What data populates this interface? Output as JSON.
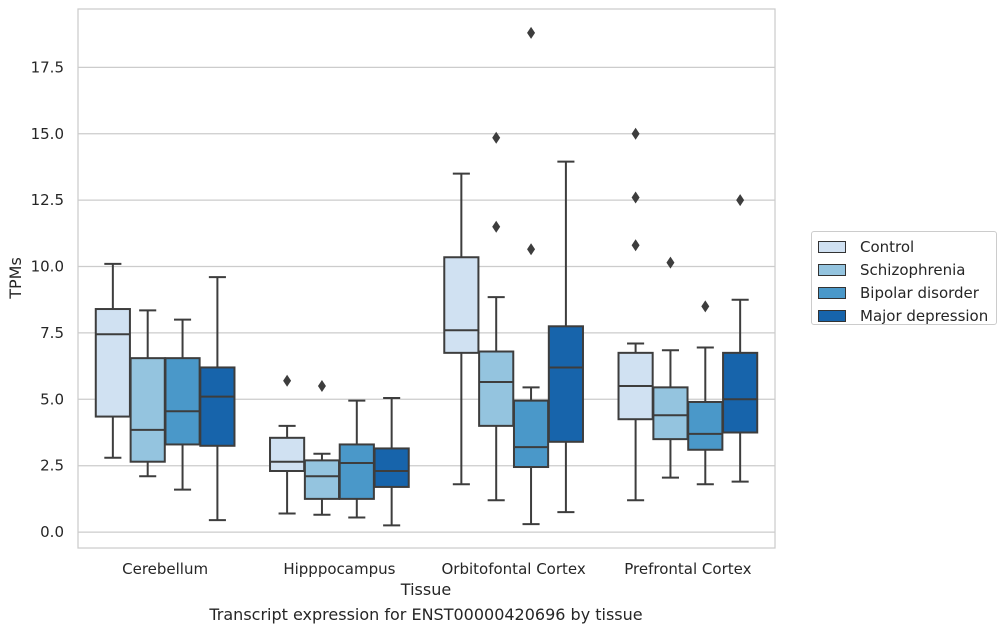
{
  "chart_data": {
    "type": "boxplot",
    "xlabel": "Tissue",
    "ylabel": "TPMs",
    "caption": "Transcript expression for ENST00000420696 by tissue",
    "ylim": [
      -0.6,
      19.7
    ],
    "yticks": [
      "0.0",
      "2.5",
      "5.0",
      "7.5",
      "10.0",
      "12.5",
      "15.0",
      "17.5"
    ],
    "categories": [
      "Cerebellum",
      "Hipppocampus",
      "Orbitofontal Cortex",
      "Prefrontal Cortex"
    ],
    "grid": "horizontal",
    "legend_position": "right",
    "series": [
      {
        "name": "Control",
        "color": "#d0e1f2",
        "boxes": [
          {
            "whislo": 2.8,
            "q1": 4.35,
            "med": 7.45,
            "q3": 8.4,
            "whishi": 10.1,
            "fliers": []
          },
          {
            "whislo": 0.7,
            "q1": 2.3,
            "med": 2.65,
            "q3": 3.55,
            "whishi": 4.0,
            "fliers": [
              5.7
            ]
          },
          {
            "whislo": 1.8,
            "q1": 6.75,
            "med": 7.6,
            "q3": 10.35,
            "whishi": 13.5,
            "fliers": []
          },
          {
            "whislo": 1.2,
            "q1": 4.25,
            "med": 5.5,
            "q3": 6.75,
            "whishi": 7.1,
            "fliers": [
              15.0,
              12.6,
              10.8
            ]
          }
        ]
      },
      {
        "name": "Schizophrenia",
        "color": "#94c4df",
        "boxes": [
          {
            "whislo": 2.1,
            "q1": 2.65,
            "med": 3.85,
            "q3": 6.55,
            "whishi": 8.35,
            "fliers": []
          },
          {
            "whislo": 0.65,
            "q1": 1.25,
            "med": 2.1,
            "q3": 2.7,
            "whishi": 2.95,
            "fliers": [
              5.5
            ]
          },
          {
            "whislo": 1.2,
            "q1": 4.0,
            "med": 5.65,
            "q3": 6.8,
            "whishi": 8.85,
            "fliers": [
              14.85,
              11.5
            ]
          },
          {
            "whislo": 2.05,
            "q1": 3.5,
            "med": 4.4,
            "q3": 5.45,
            "whishi": 6.85,
            "fliers": [
              10.15
            ]
          }
        ]
      },
      {
        "name": "Bipolar disorder",
        "color": "#4a98c9",
        "boxes": [
          {
            "whislo": 1.6,
            "q1": 3.3,
            "med": 4.55,
            "q3": 6.55,
            "whishi": 8.0,
            "fliers": []
          },
          {
            "whislo": 0.55,
            "q1": 1.25,
            "med": 2.6,
            "q3": 3.3,
            "whishi": 4.95,
            "fliers": []
          },
          {
            "whislo": 0.3,
            "q1": 2.45,
            "med": 3.2,
            "q3": 4.95,
            "whishi": 5.45,
            "fliers": [
              18.8,
              10.65
            ]
          },
          {
            "whislo": 1.8,
            "q1": 3.1,
            "med": 3.7,
            "q3": 4.9,
            "whishi": 6.95,
            "fliers": [
              8.5
            ]
          }
        ]
      },
      {
        "name": "Major depression",
        "color": "#1764ab",
        "boxes": [
          {
            "whislo": 0.45,
            "q1": 3.25,
            "med": 5.1,
            "q3": 6.2,
            "whishi": 9.6,
            "fliers": []
          },
          {
            "whislo": 0.25,
            "q1": 1.7,
            "med": 2.3,
            "q3": 3.15,
            "whishi": 5.05,
            "fliers": []
          },
          {
            "whislo": 0.75,
            "q1": 3.4,
            "med": 6.2,
            "q3": 7.75,
            "whishi": 13.95,
            "fliers": []
          },
          {
            "whislo": 1.9,
            "q1": 3.75,
            "med": 5.0,
            "q3": 6.75,
            "whishi": 8.75,
            "fliers": [
              12.5
            ]
          }
        ]
      }
    ]
  }
}
